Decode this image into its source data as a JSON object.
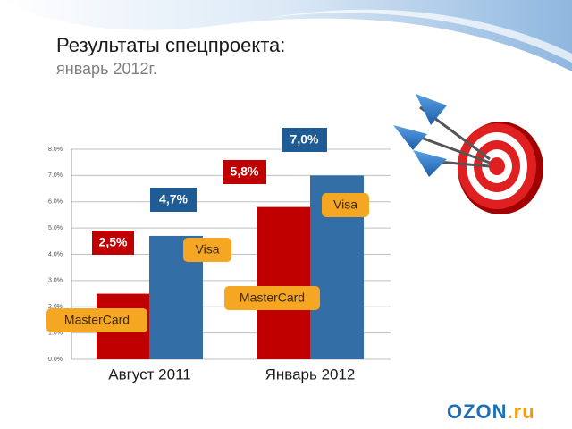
{
  "title": "Результаты спецпроекта:",
  "subtitle": "январь 2012г.",
  "logo": {
    "main": "OZON",
    "suffix": ".ru"
  },
  "chart_data": {
    "type": "bar",
    "categories": [
      "Август 2011",
      "Январь 2012"
    ],
    "series": [
      {
        "name": "MasterCard",
        "color": "#c00000",
        "values": [
          2.5,
          5.8
        ],
        "value_labels": [
          "2,5%",
          "5,8%"
        ]
      },
      {
        "name": "Visa",
        "color": "#336ea6",
        "values": [
          4.7,
          7.0
        ],
        "value_labels": [
          "4,7%",
          "7,0%"
        ]
      }
    ],
    "ylim": [
      0,
      8
    ],
    "yticks": [
      {
        "value": 0,
        "label": "0.0%"
      },
      {
        "value": 1,
        "label": "1.0%"
      },
      {
        "value": 2,
        "label": "2.0%"
      },
      {
        "value": 3,
        "label": "3.0%"
      },
      {
        "value": 4,
        "label": "4.0%"
      },
      {
        "value": 5,
        "label": "5.0%"
      },
      {
        "value": 6,
        "label": "6.0%"
      },
      {
        "value": 7,
        "label": "7.0%"
      },
      {
        "value": 8,
        "label": "8.0%"
      }
    ],
    "grid": true
  }
}
